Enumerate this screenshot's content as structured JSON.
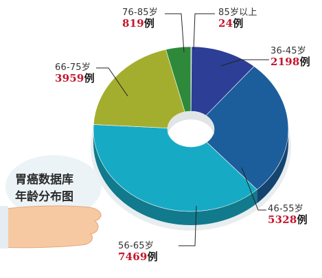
{
  "chart_data": {
    "type": "pie",
    "title": "胃癌数据库年龄分布图",
    "title_lines": [
      "胃癌数据库",
      "年龄分布图"
    ],
    "unit": "例",
    "series": [
      {
        "name": "85岁以上",
        "value": 24,
        "value_text": "24",
        "color": "#6e7c1e"
      },
      {
        "name": "36-45岁",
        "value": 2198,
        "value_text": "2198",
        "color": "#2c3e96"
      },
      {
        "name": "46-55岁",
        "value": 5328,
        "value_text": "5328",
        "color": "#1c5e9c"
      },
      {
        "name": "56-65岁",
        "value": 7469,
        "value_text": "7469",
        "color": "#17aac4"
      },
      {
        "name": "66-75岁",
        "value": 3959,
        "value_text": "3959",
        "color": "#a4ae2e"
      },
      {
        "name": "76-85岁",
        "value": 819,
        "value_text": "819",
        "color": "#2e8a3a"
      }
    ]
  }
}
